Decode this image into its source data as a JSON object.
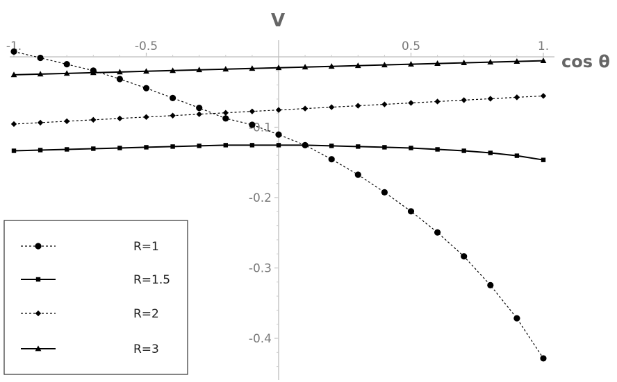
{
  "chart_data": {
    "type": "line",
    "title": "",
    "xlabel": "cos θ",
    "ylabel": "V",
    "xlim": [
      -1.0,
      1.0
    ],
    "ylim": [
      -0.45,
      0.015
    ],
    "x_ticks": [
      {
        "value": -1.0,
        "label": "-1."
      },
      {
        "value": -0.5,
        "label": "-0.5"
      },
      {
        "value": 0.5,
        "label": "0.5"
      },
      {
        "value": 1.0,
        "label": "1."
      }
    ],
    "y_ticks": [
      {
        "value": -0.1,
        "label": "-0.1"
      },
      {
        "value": -0.2,
        "label": "-0.2"
      },
      {
        "value": -0.3,
        "label": "-0.3"
      },
      {
        "value": -0.4,
        "label": "-0.4"
      }
    ],
    "grid": false,
    "legend_position": "bottom-left",
    "series": [
      {
        "name": "R=1",
        "marker": "circle",
        "line": "dashed",
        "points": [
          [
            -1.0,
            0.0075
          ],
          [
            -0.9,
            -0.0015
          ],
          [
            -0.8,
            -0.0105
          ],
          [
            -0.7,
            -0.0195
          ],
          [
            -0.6,
            -0.0315
          ],
          [
            -0.5,
            -0.0445
          ],
          [
            -0.4,
            -0.0585
          ],
          [
            -0.3,
            -0.0725
          ],
          [
            -0.2,
            -0.0875
          ],
          [
            -0.1,
            -0.0965
          ],
          [
            0.0,
            -0.1105
          ],
          [
            0.1,
            -0.1255
          ],
          [
            0.2,
            -0.1455
          ],
          [
            0.3,
            -0.1675
          ],
          [
            0.4,
            -0.1925
          ],
          [
            0.5,
            -0.2195
          ],
          [
            0.6,
            -0.2495
          ],
          [
            0.7,
            -0.2835
          ],
          [
            0.8,
            -0.3245
          ],
          [
            0.9,
            -0.3715
          ],
          [
            1.0,
            -0.4285
          ]
        ]
      },
      {
        "name": "R=1.5",
        "marker": "square",
        "line": "solid",
        "points": [
          [
            -1.0,
            -0.1335
          ],
          [
            -0.9,
            -0.1325
          ],
          [
            -0.8,
            -0.1315
          ],
          [
            -0.7,
            -0.1305
          ],
          [
            -0.6,
            -0.1295
          ],
          [
            -0.5,
            -0.1285
          ],
          [
            -0.4,
            -0.1275
          ],
          [
            -0.3,
            -0.1265
          ],
          [
            -0.2,
            -0.1255
          ],
          [
            -0.1,
            -0.1255
          ],
          [
            0.0,
            -0.1255
          ],
          [
            0.1,
            -0.1255
          ],
          [
            0.2,
            -0.1265
          ],
          [
            0.3,
            -0.1275
          ],
          [
            0.4,
            -0.1285
          ],
          [
            0.5,
            -0.1295
          ],
          [
            0.6,
            -0.1315
          ],
          [
            0.7,
            -0.1335
          ],
          [
            0.8,
            -0.1365
          ],
          [
            0.9,
            -0.1405
          ],
          [
            1.0,
            -0.1465
          ]
        ]
      },
      {
        "name": "R=2",
        "marker": "diamond",
        "line": "dashed",
        "points": [
          [
            -1.0,
            -0.0955
          ],
          [
            -0.9,
            -0.0935
          ],
          [
            -0.8,
            -0.0915
          ],
          [
            -0.7,
            -0.0895
          ],
          [
            -0.6,
            -0.0875
          ],
          [
            -0.5,
            -0.0855
          ],
          [
            -0.4,
            -0.0835
          ],
          [
            -0.3,
            -0.0815
          ],
          [
            -0.2,
            -0.0795
          ],
          [
            -0.1,
            -0.0775
          ],
          [
            0.0,
            -0.0755
          ],
          [
            0.1,
            -0.0735
          ],
          [
            0.2,
            -0.0715
          ],
          [
            0.3,
            -0.0695
          ],
          [
            0.4,
            -0.0675
          ],
          [
            0.5,
            -0.0655
          ],
          [
            0.6,
            -0.0635
          ],
          [
            0.7,
            -0.0615
          ],
          [
            0.8,
            -0.0595
          ],
          [
            0.9,
            -0.0575
          ],
          [
            1.0,
            -0.0555
          ]
        ]
      },
      {
        "name": "R=3",
        "marker": "triangle",
        "line": "solid",
        "points": [
          [
            -1.0,
            -0.0255
          ],
          [
            -0.9,
            -0.0245
          ],
          [
            -0.8,
            -0.0235
          ],
          [
            -0.7,
            -0.0225
          ],
          [
            -0.6,
            -0.0215
          ],
          [
            -0.5,
            -0.0205
          ],
          [
            -0.4,
            -0.0195
          ],
          [
            -0.3,
            -0.0185
          ],
          [
            -0.2,
            -0.0175
          ],
          [
            -0.1,
            -0.0165
          ],
          [
            0.0,
            -0.0155
          ],
          [
            0.1,
            -0.0145
          ],
          [
            0.2,
            -0.0135
          ],
          [
            0.3,
            -0.0125
          ],
          [
            0.4,
            -0.0115
          ],
          [
            0.5,
            -0.0105
          ],
          [
            0.6,
            -0.0095
          ],
          [
            0.7,
            -0.0085
          ],
          [
            0.8,
            -0.0075
          ],
          [
            0.9,
            -0.0065
          ],
          [
            1.0,
            -0.0055
          ]
        ]
      }
    ]
  }
}
